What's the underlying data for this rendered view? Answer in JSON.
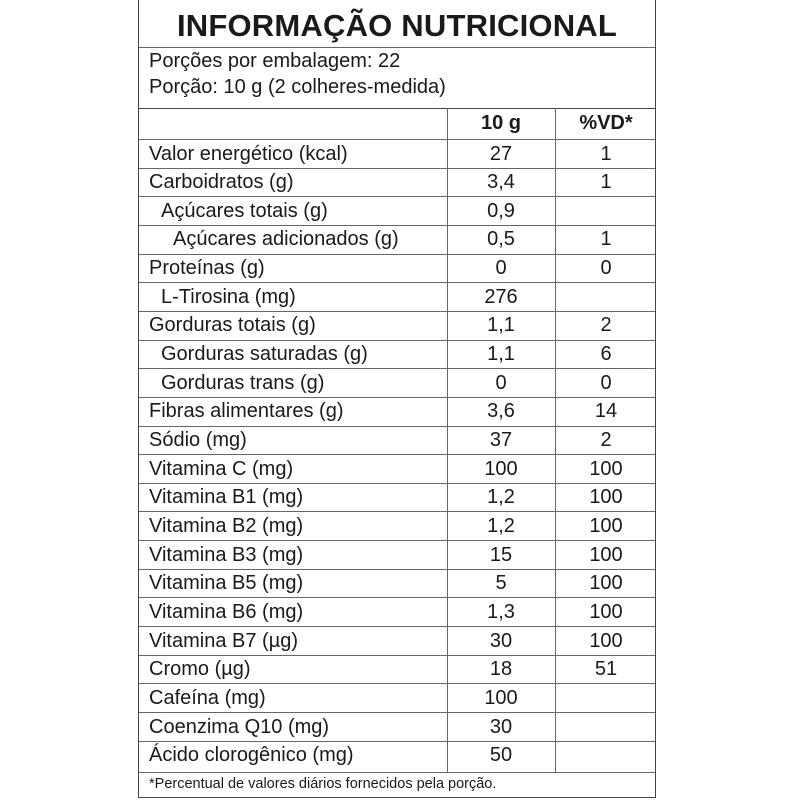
{
  "title": "INFORMAÇÃO NUTRICIONAL",
  "servings_per_package": "Porções por embalagem: 22",
  "serving_size": "Porção: 10 g (2 colheres-medida)",
  "columns": {
    "amount": "10 g",
    "dv": "%VD*"
  },
  "rows": [
    {
      "name": "Valor energético (kcal)",
      "amount": "27",
      "dv": "1",
      "indent": 0
    },
    {
      "name": "Carboidratos (g)",
      "amount": "3,4",
      "dv": "1",
      "indent": 0
    },
    {
      "name": "Açúcares totais (g)",
      "amount": "0,9",
      "dv": "",
      "indent": 1
    },
    {
      "name": "Açúcares adicionados (g)",
      "amount": "0,5",
      "dv": "1",
      "indent": 2
    },
    {
      "name": "Proteínas (g)",
      "amount": "0",
      "dv": "0",
      "indent": 0
    },
    {
      "name": "L-Tirosina (mg)",
      "amount": "276",
      "dv": "",
      "indent": 1
    },
    {
      "name": "Gorduras totais (g)",
      "amount": "1,1",
      "dv": "2",
      "indent": 0
    },
    {
      "name": "Gorduras saturadas (g)",
      "amount": "1,1",
      "dv": "6",
      "indent": 1
    },
    {
      "name": "Gorduras trans (g)",
      "amount": "0",
      "dv": "0",
      "indent": 1
    },
    {
      "name": "Fibras alimentares (g)",
      "amount": "3,6",
      "dv": "14",
      "indent": 0
    },
    {
      "name": "Sódio (mg)",
      "amount": "37",
      "dv": "2",
      "indent": 0
    },
    {
      "name": "Vitamina C (mg)",
      "amount": "100",
      "dv": "100",
      "indent": 0
    },
    {
      "name": "Vitamina B1 (mg)",
      "amount": "1,2",
      "dv": "100",
      "indent": 0
    },
    {
      "name": "Vitamina B2 (mg)",
      "amount": "1,2",
      "dv": "100",
      "indent": 0
    },
    {
      "name": "Vitamina B3 (mg)",
      "amount": "15",
      "dv": "100",
      "indent": 0
    },
    {
      "name": "Vitamina B5 (mg)",
      "amount": "5",
      "dv": "100",
      "indent": 0
    },
    {
      "name": "Vitamina B6 (mg)",
      "amount": "1,3",
      "dv": "100",
      "indent": 0
    },
    {
      "name": "Vitamina B7 (µg)",
      "amount": "30",
      "dv": "100",
      "indent": 0
    },
    {
      "name": "Cromo (µg)",
      "amount": "18",
      "dv": "51",
      "indent": 0
    },
    {
      "name": "Cafeína (mg)",
      "amount": "100",
      "dv": "",
      "indent": 0
    },
    {
      "name": "Coenzima Q10 (mg)",
      "amount": "30",
      "dv": "",
      "indent": 0
    },
    {
      "name": "Ácido clorogênico (mg)",
      "amount": "50",
      "dv": "",
      "indent": 0
    }
  ],
  "footnote": "*Percentual de valores diários fornecidos pela porção."
}
